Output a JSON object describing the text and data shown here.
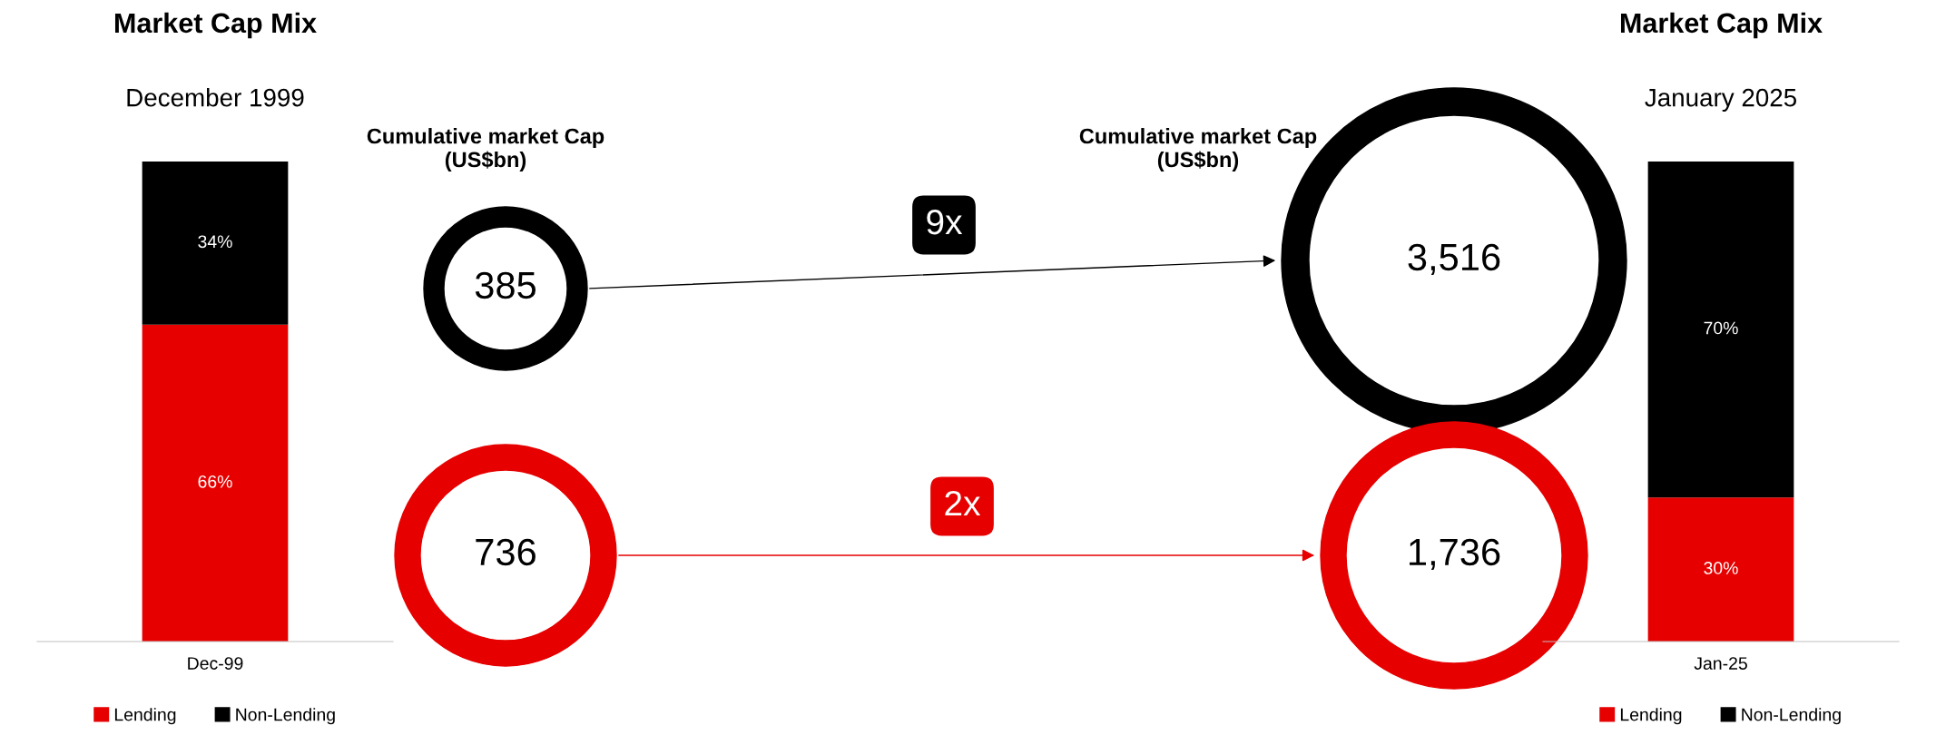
{
  "chart_data": [
    {
      "type": "bar",
      "title": "Market Cap Mix",
      "subtitle": "December 1999",
      "categories": [
        "Dec-99"
      ],
      "stacked": true,
      "legend": "bottom",
      "series": [
        {
          "name": "Lending",
          "color": "#e60000",
          "values": [
            66
          ],
          "value_labels": [
            "66%"
          ]
        },
        {
          "name": "Non-Lending",
          "color": "#000000",
          "values": [
            34
          ],
          "value_labels": [
            "34%"
          ]
        }
      ]
    },
    {
      "type": "other",
      "colors": [
        "#000000",
        "#e60000"
      ],
      "annotations": [
        "Cumulative market Cap (US$bn)",
        "Cumulative market Cap (US$bn)",
        "385",
        "3,516",
        "9x",
        "736",
        "1,736",
        "2x"
      ]
    },
    {
      "type": "bar",
      "title": "Market Cap Mix",
      "subtitle": "January 2025",
      "categories": [
        "Jan-25"
      ],
      "stacked": true,
      "legend": "bottom",
      "series": [
        {
          "name": "Lending",
          "color": "#e60000",
          "values": [
            30
          ],
          "value_labels": [
            "30%"
          ]
        },
        {
          "name": "Non-Lending",
          "color": "#000000",
          "values": [
            70
          ],
          "value_labels": [
            "70%"
          ]
        }
      ]
    }
  ]
}
